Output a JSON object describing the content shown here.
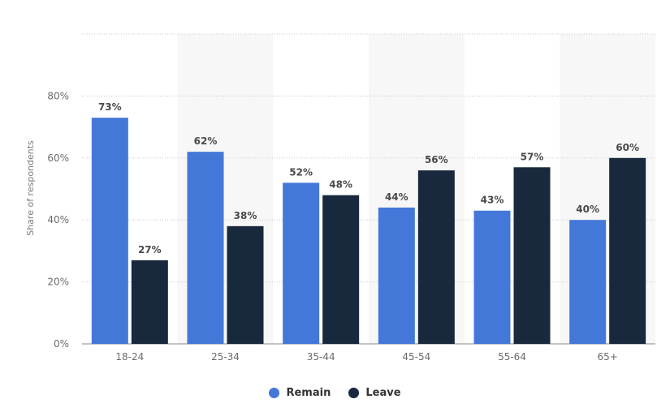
{
  "chart_data": {
    "type": "bar",
    "categories": [
      "18-24",
      "25-34",
      "35-44",
      "45-54",
      "55-64",
      "65+"
    ],
    "series": [
      {
        "name": "Remain",
        "color": "#4478d8",
        "values": [
          73,
          62,
          52,
          44,
          43,
          40
        ]
      },
      {
        "name": "Leave",
        "color": "#18283d",
        "values": [
          27,
          38,
          48,
          56,
          57,
          60
        ]
      }
    ],
    "ylabel": "Share of respondents",
    "ylim": [
      0,
      100
    ],
    "yticks": [
      0,
      20,
      40,
      60,
      80
    ],
    "ytick_labels": [
      "0%",
      "20%",
      "40%",
      "60%",
      "80%"
    ],
    "value_suffix": "%",
    "grid": true,
    "legend_position": "bottom-center"
  }
}
